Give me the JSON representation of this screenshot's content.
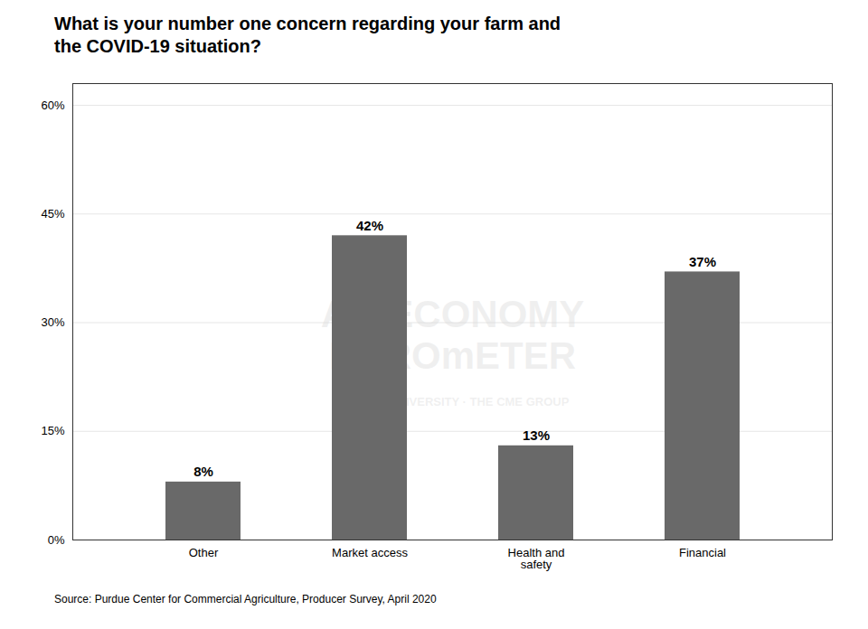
{
  "chart_data": {
    "type": "bar",
    "title": "What is your number one concern regarding your farm and\nthe COVID-19 situation?",
    "categories": [
      "Other",
      "Market access",
      "Health and\nsafety",
      "Financial"
    ],
    "values": [
      8,
      42,
      13,
      37
    ],
    "value_labels": [
      "8%",
      "42%",
      "13%",
      "37%"
    ],
    "data_labels": true,
    "color": "#696969",
    "ylim": [
      0,
      63
    ],
    "yticks": [
      {
        "value": 0,
        "label": "0%"
      },
      {
        "value": 15,
        "label": "15%"
      },
      {
        "value": 30,
        "label": "30%"
      },
      {
        "value": 45,
        "label": "45%"
      },
      {
        "value": 60,
        "label": "60%"
      }
    ],
    "grid": true,
    "source": "Source: Purdue Center for Commercial Agriculture, Producer Survey, April 2020",
    "annotations": [
      "AG ECONOMY\nBAROmETER",
      "PURDUE UNIVERSITY · THE CME GROUP"
    ]
  }
}
